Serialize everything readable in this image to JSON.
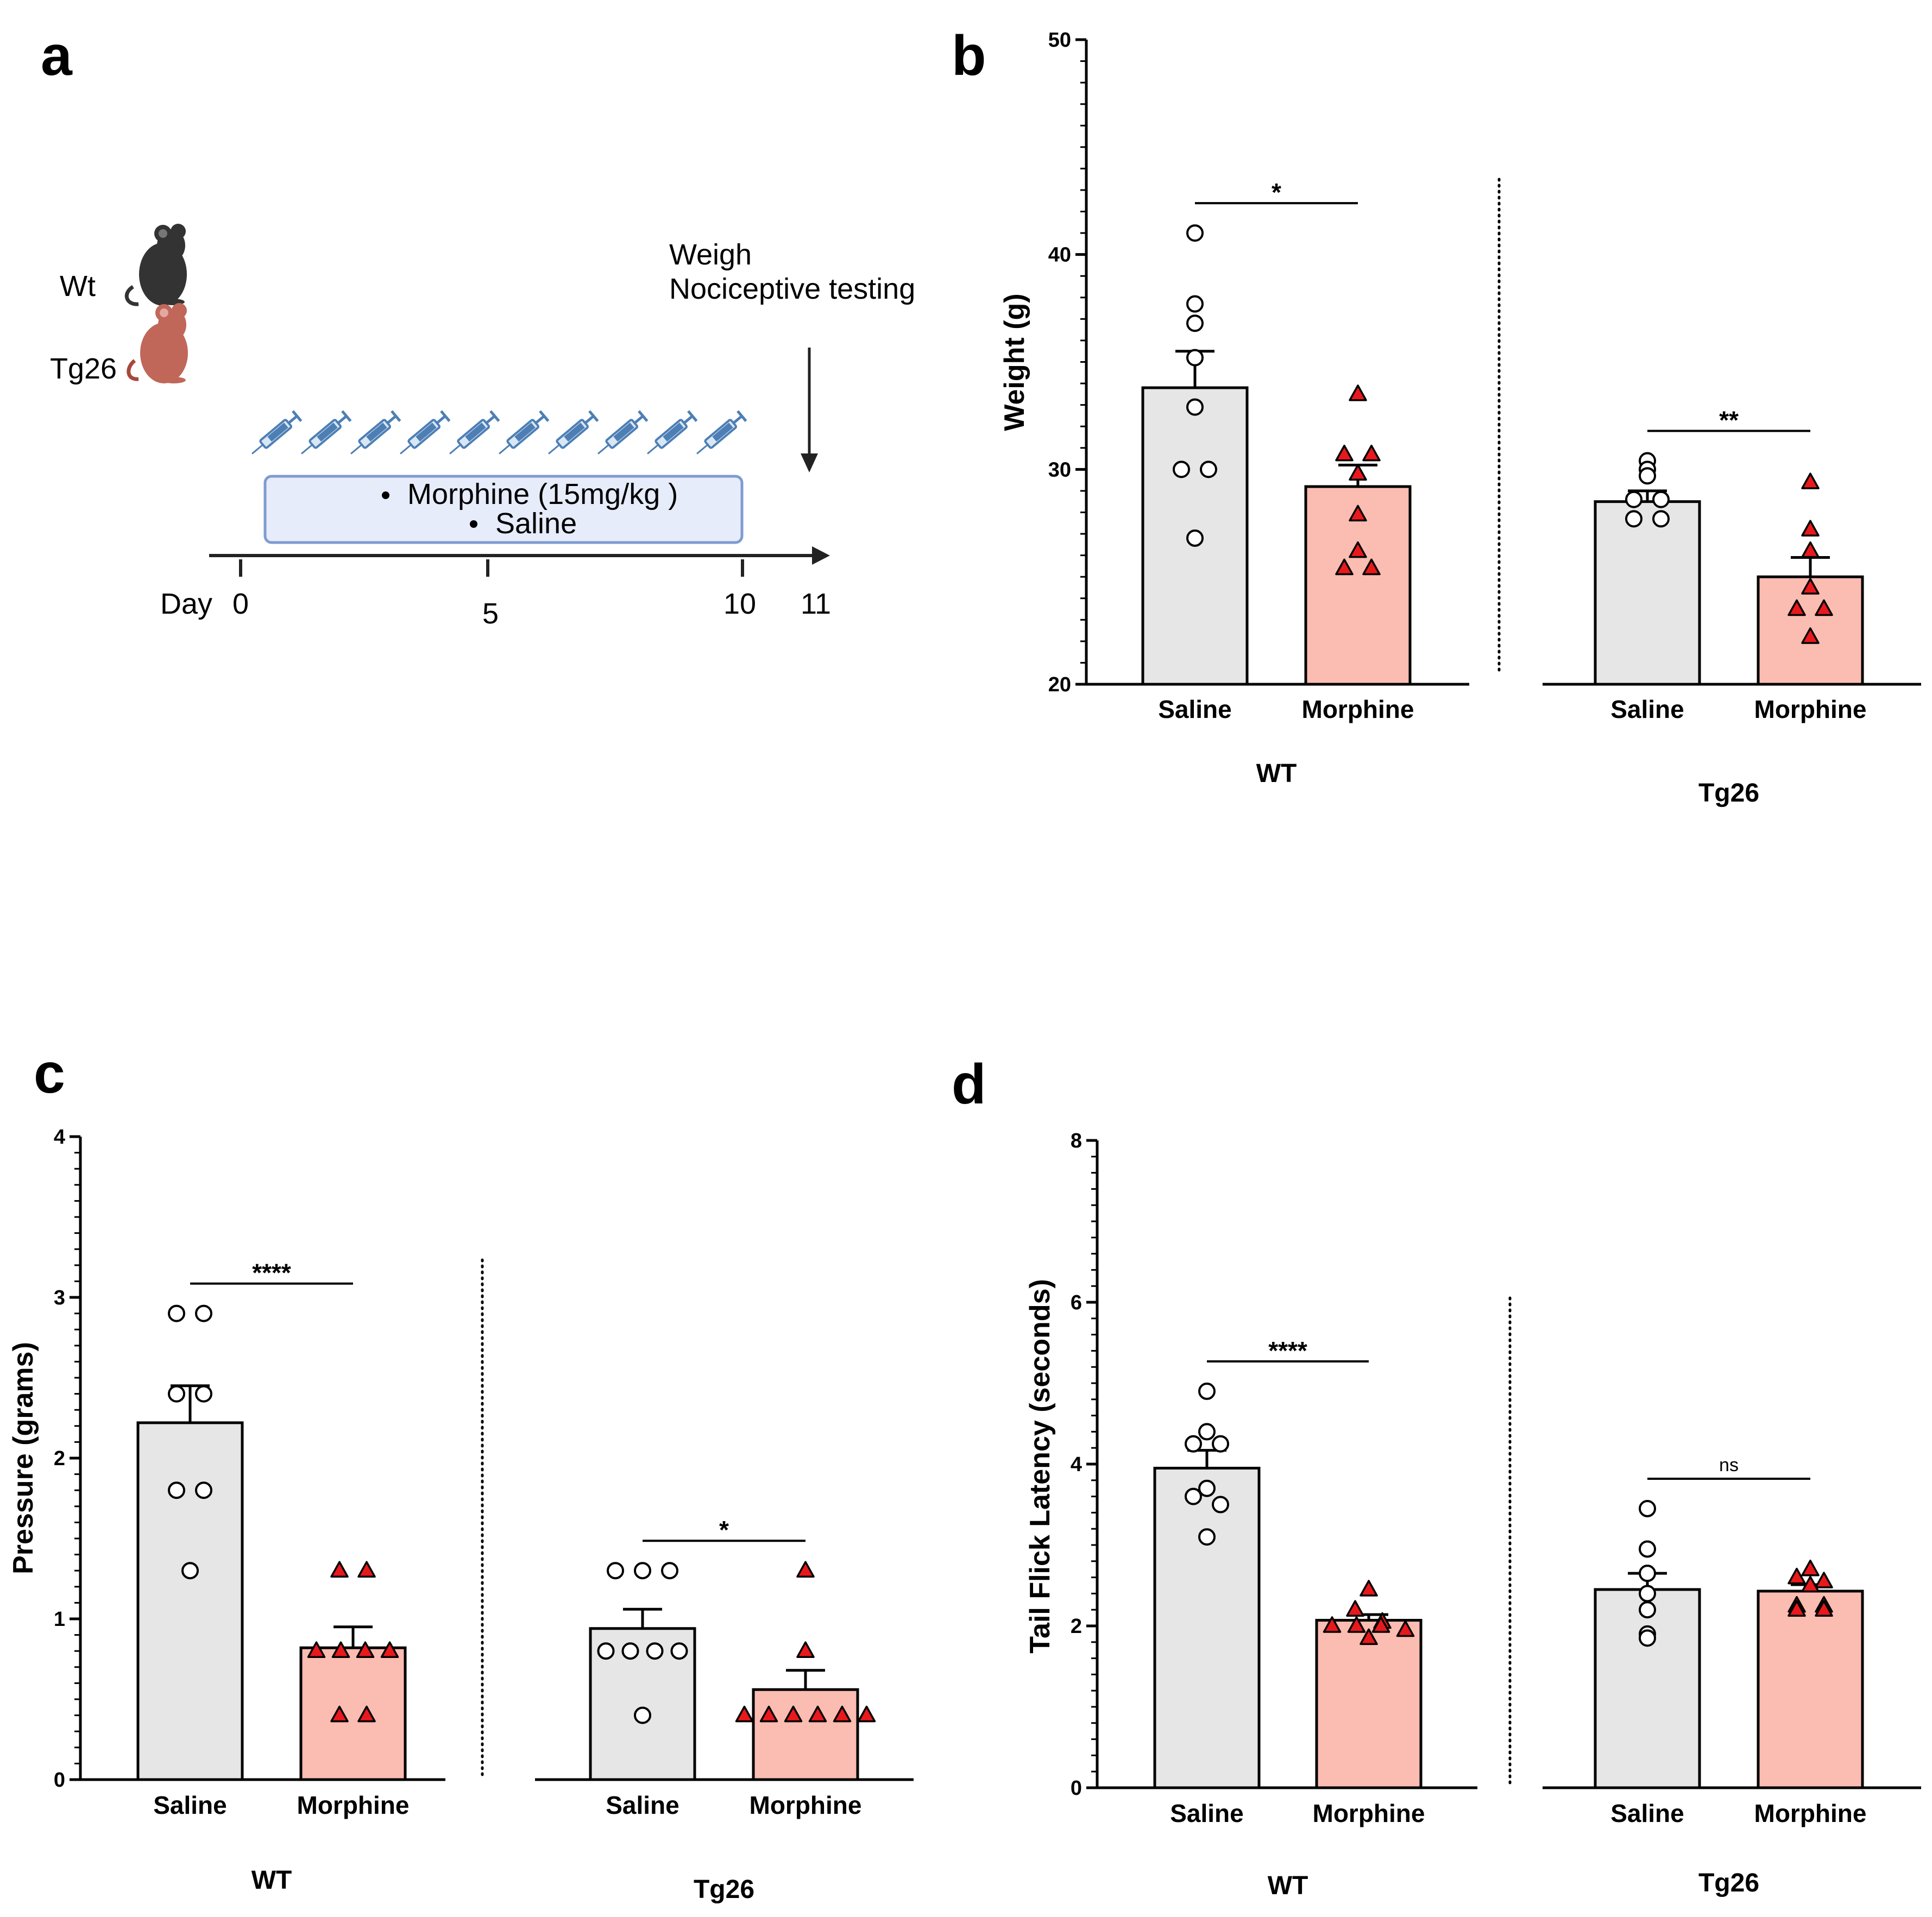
{
  "colors": {
    "saline_bar": "#e6e6e6",
    "morphine_bar": "#fbbcb1",
    "triangle": "#e8191c",
    "wt_mouse": "#333333",
    "tg_mouse": "#c0675a",
    "treatment_box": "#e6ecfa",
    "treatment_box_border": "#7f9bd1",
    "syringe": "#4d7fb5"
  },
  "panel_a": {
    "label": "a",
    "wt_label": "Wt",
    "tg_label": "Tg26",
    "endpoint_line1": "Weigh",
    "endpoint_line2": "Nociceptive testing",
    "treatment_1": "Morphine (15mg/kg )",
    "treatment_2": "Saline",
    "day_prefix": "Day",
    "days": [
      "0",
      "5",
      "10",
      "11"
    ],
    "injections": 10
  },
  "chart_data": [
    {
      "panel": "b",
      "type": "bar",
      "ylabel": "Weight (g)",
      "ylim": [
        20,
        50
      ],
      "yticks": [
        "20",
        "30",
        "40",
        "50"
      ],
      "groups": [
        {
          "name": "WT",
          "categories": [
            "Saline",
            "Morphine"
          ],
          "means": [
            33.8,
            29.2
          ],
          "sem": [
            1.7,
            1.0
          ],
          "points": [
            [
              41.0,
              37.7,
              36.8,
              35.2,
              32.9,
              30.0,
              30.0,
              26.8
            ],
            [
              33.5,
              30.7,
              30.7,
              29.8,
              27.9,
              26.2,
              25.4,
              25.4
            ]
          ],
          "sig": "*"
        },
        {
          "name": "Tg26",
          "categories": [
            "Saline",
            "Morphine"
          ],
          "means": [
            28.5,
            25.0
          ],
          "sem": [
            0.5,
            0.9
          ],
          "points": [
            [
              30.4,
              30.0,
              29.7,
              28.6,
              28.6,
              27.7,
              27.7
            ],
            [
              29.4,
              27.2,
              26.2,
              24.5,
              23.5,
              23.5,
              22.2
            ]
          ],
          "sig": "**"
        }
      ]
    },
    {
      "panel": "c",
      "type": "bar",
      "ylabel": "Pressure (grams)",
      "ylim": [
        0,
        4
      ],
      "yticks": [
        "0",
        "1",
        "2",
        "3",
        "4"
      ],
      "groups": [
        {
          "name": "WT",
          "categories": [
            "Saline",
            "Morphine"
          ],
          "means": [
            2.22,
            0.82
          ],
          "sem": [
            0.23,
            0.13
          ],
          "points": [
            [
              2.9,
              2.9,
              2.4,
              2.4,
              1.8,
              1.8,
              1.3
            ],
            [
              1.3,
              1.3,
              0.8,
              0.8,
              0.8,
              0.8,
              0.4,
              0.4
            ]
          ],
          "sig": "****"
        },
        {
          "name": "Tg26",
          "categories": [
            "Saline",
            "Morphine"
          ],
          "means": [
            0.94,
            0.56
          ],
          "sem": [
            0.12,
            0.12
          ],
          "points": [
            [
              1.3,
              1.3,
              1.3,
              0.8,
              0.8,
              0.8,
              0.8,
              0.4
            ],
            [
              1.3,
              0.8,
              0.4,
              0.4,
              0.4,
              0.4,
              0.4,
              0.4
            ]
          ],
          "sig": "*"
        }
      ]
    },
    {
      "panel": "d",
      "type": "bar",
      "ylabel": "Tail Flick Latency (seconds)",
      "ylim": [
        0,
        8
      ],
      "yticks": [
        "0",
        "2",
        "4",
        "6",
        "8"
      ],
      "groups": [
        {
          "name": "WT",
          "categories": [
            "Saline",
            "Morphine"
          ],
          "means": [
            3.95,
            2.07
          ],
          "sem": [
            0.22,
            0.07
          ],
          "points": [
            [
              4.9,
              4.4,
              4.25,
              4.25,
              3.7,
              3.6,
              3.5,
              3.1
            ],
            [
              2.45,
              2.2,
              2.05,
              2.0,
              2.0,
              2.0,
              1.95,
              1.85
            ]
          ],
          "sig": "****"
        },
        {
          "name": "Tg26",
          "categories": [
            "Saline",
            "Morphine"
          ],
          "means": [
            2.45,
            2.43
          ],
          "sem": [
            0.2,
            0.08
          ],
          "points": [
            [
              3.45,
              2.95,
              2.65,
              2.4,
              2.2,
              1.9,
              1.85
            ],
            [
              2.7,
              2.6,
              2.55,
              2.5,
              2.25,
              2.25,
              2.2,
              2.2
            ]
          ],
          "sig": "ns"
        }
      ]
    }
  ]
}
